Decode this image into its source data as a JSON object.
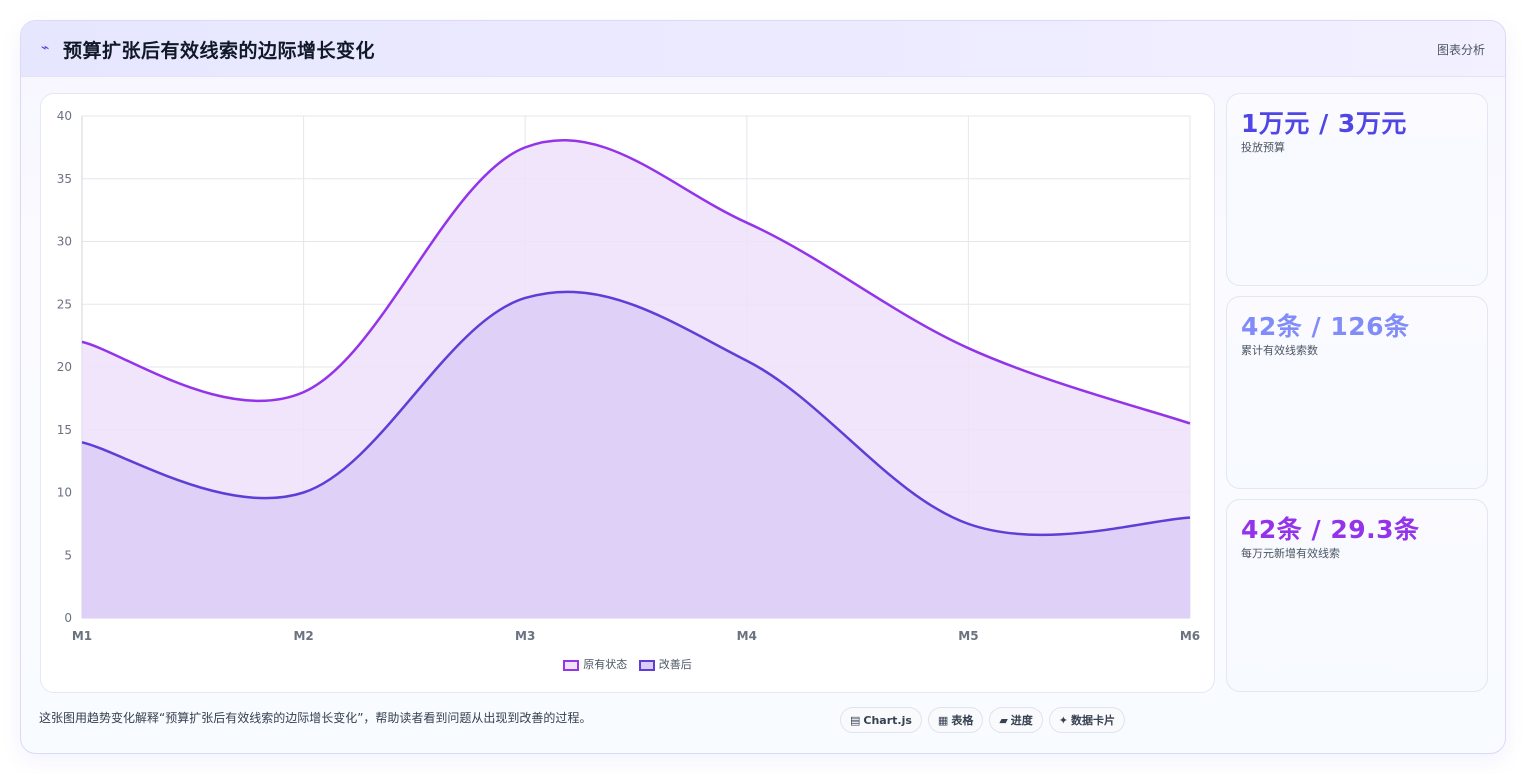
{
  "header": {
    "icon": "trend-icon",
    "title": "预算扩张后有效线索的边际增长变化",
    "action_label": "图表分析"
  },
  "chart_data": {
    "type": "area",
    "categories": [
      "M1",
      "M2",
      "M3",
      "M4",
      "M5",
      "M6"
    ],
    "series": [
      {
        "name": "原有状态",
        "values": [
          22,
          18,
          37.5,
          31.5,
          21.5,
          15.5
        ],
        "color": "#9333ea",
        "fill": "#efe1fa"
      },
      {
        "name": "改善后",
        "values": [
          14,
          10,
          25.5,
          20.5,
          7.5,
          8
        ],
        "color": "#5b3fd6",
        "fill": "#dccdf7"
      }
    ],
    "ylim": [
      0,
      40
    ],
    "yticks": [
      0,
      5,
      10,
      15,
      20,
      25,
      30,
      35,
      40
    ],
    "grid": true,
    "legend": "bottom-center",
    "smooth": true
  },
  "stats": [
    {
      "value": "1万元 / 3万元",
      "label": "投放预算",
      "color": "#4f46e5"
    },
    {
      "value": "42条 / 126条",
      "label": "累计有效线索数",
      "color": "#818cf8"
    },
    {
      "value": "42条 / 29.3条",
      "label": "每万元新增有效线索",
      "color": "#9333ea"
    }
  ],
  "caption": "这张图用趋势变化解释“预算扩张后有效线索的边际增长变化”，帮助读者看到问题从出现到改善的过程。",
  "pills": [
    {
      "icon": "▤",
      "label": "Chart.js"
    },
    {
      "icon": "▦",
      "label": "表格"
    },
    {
      "icon": "▰",
      "label": "进度"
    },
    {
      "icon": "✦",
      "label": "数据卡片"
    }
  ]
}
